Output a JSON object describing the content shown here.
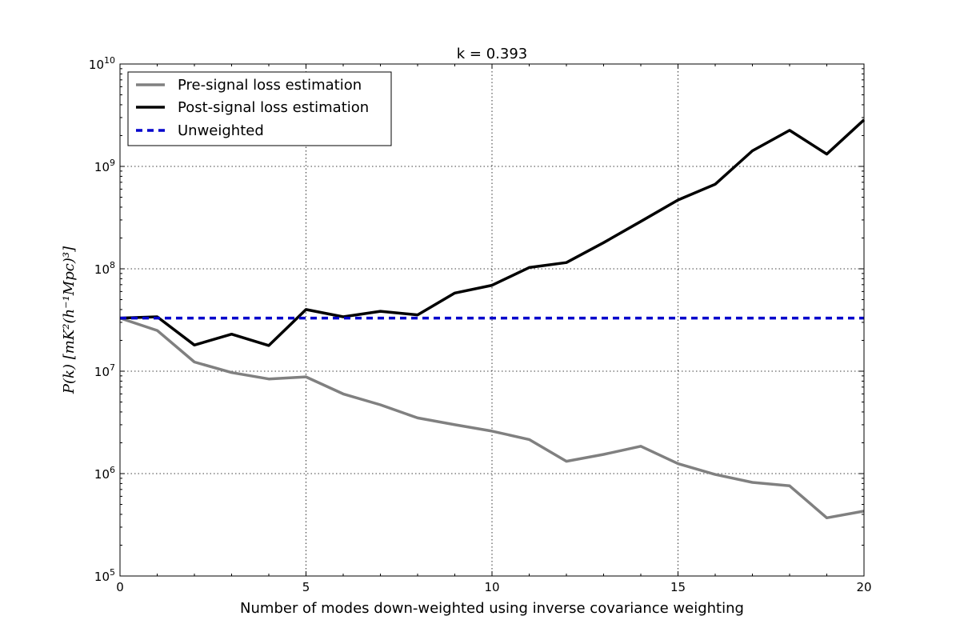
{
  "chart_data": {
    "type": "line",
    "title": "k = 0.393",
    "xlabel": "Number of modes down-weighted using inverse covariance weighting",
    "ylabel": "P(k) [mK²(h⁻¹Mpc)³]",
    "xlim": [
      0,
      20
    ],
    "ylim": [
      100000,
      10000000000
    ],
    "yscale": "log",
    "grid": true,
    "legend_position": "top-left",
    "x_ticks": [
      0,
      5,
      10,
      15,
      20
    ],
    "y_tick_exponents": [
      5,
      6,
      7,
      8,
      9,
      10
    ],
    "y_tick_base": "10",
    "x": [
      0,
      1,
      2,
      3,
      4,
      5,
      6,
      7,
      8,
      9,
      10,
      11,
      12,
      13,
      14,
      15,
      16,
      17,
      18,
      19,
      20
    ],
    "series": [
      {
        "name": "Pre-signal loss estimation",
        "color": "#808080",
        "style": "solid",
        "values": [
          33000000,
          25000000,
          12300000,
          9700000,
          8400000,
          8800000,
          6000000,
          4700000,
          3500000,
          3000000,
          2600000,
          2150000,
          1320000,
          1540000,
          1850000,
          1250000,
          980000,
          820000,
          760000,
          370000,
          430000
        ]
      },
      {
        "name": "Post-signal loss estimation",
        "color": "#000000",
        "style": "solid",
        "values": [
          33000000,
          34000000,
          18000000,
          23000000,
          17800000,
          40000000,
          34000000,
          38500000,
          35500000,
          58000000,
          69000000,
          103000000,
          115000000,
          180000000,
          290000000,
          470000000,
          670000000,
          1420000000,
          2250000000,
          1320000000,
          2850000000
        ]
      },
      {
        "name": "Unweighted",
        "color": "#0000cc",
        "style": "dashed",
        "values": [
          33000000,
          33000000,
          33000000,
          33000000,
          33000000,
          33000000,
          33000000,
          33000000,
          33000000,
          33000000,
          33000000,
          33000000,
          33000000,
          33000000,
          33000000,
          33000000,
          33000000,
          33000000,
          33000000,
          33000000,
          33000000
        ]
      }
    ]
  }
}
